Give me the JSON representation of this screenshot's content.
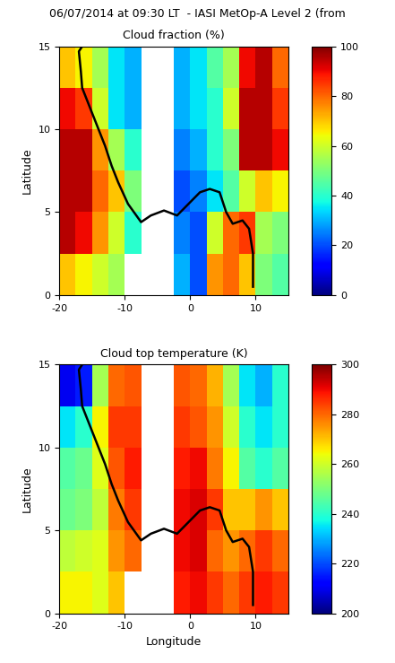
{
  "title": "06/07/2014 at 09:30 LT  - IASI MetOp-A Level 2 (from",
  "chart_data": [
    {
      "type": "heatmap",
      "title": "Cloud fraction (%)",
      "y_label": "Latitude",
      "x_edges": [
        -20,
        -17.5,
        -15,
        -12.5,
        -10,
        -7.5,
        -5,
        -2.5,
        0,
        2.5,
        5,
        7.5,
        10,
        12.5,
        15
      ],
      "y_edges": [
        0,
        2.5,
        5,
        7.5,
        10,
        12.5,
        15
      ],
      "cells": [
        [
          70,
          65,
          60,
          55,
          null,
          null,
          null,
          30,
          20,
          75,
          80,
          70,
          50,
          45
        ],
        [
          95,
          90,
          75,
          60,
          40,
          null,
          null,
          25,
          20,
          60,
          80,
          85,
          55,
          50
        ],
        [
          95,
          95,
          80,
          70,
          50,
          null,
          null,
          20,
          25,
          35,
          45,
          60,
          70,
          65
        ],
        [
          95,
          95,
          75,
          55,
          40,
          null,
          null,
          25,
          30,
          40,
          50,
          95,
          95,
          90
        ],
        [
          90,
          85,
          60,
          35,
          30,
          null,
          null,
          30,
          35,
          40,
          60,
          95,
          95,
          85
        ],
        [
          70,
          65,
          55,
          35,
          30,
          null,
          null,
          30,
          35,
          45,
          55,
          90,
          95,
          80
        ]
      ],
      "colorbar_lim": [
        0,
        100
      ],
      "colorbar_ticks": [
        0,
        20,
        40,
        60,
        80,
        100
      ],
      "xlim": [
        -20,
        15
      ],
      "ylim": [
        0,
        15
      ],
      "xticks": [
        -20,
        -10,
        0,
        10
      ],
      "yticks": [
        0,
        5,
        10,
        15
      ],
      "coastline": {
        "lon": [
          -16.5,
          -17.0,
          -16.7,
          -16.5,
          -15.5,
          -14.5,
          -13.5,
          -13.0,
          -12.0,
          -11.0,
          -9.5,
          -7.5,
          -6.0,
          -4.0,
          -2.0,
          0.0,
          1.5,
          3.0,
          4.5,
          5.5,
          6.5,
          8.0,
          9.0,
          9.6,
          9.6
        ],
        "lat": [
          15.0,
          14.7,
          13.5,
          12.5,
          11.5,
          10.5,
          9.5,
          9.0,
          7.8,
          6.8,
          5.5,
          4.4,
          4.8,
          5.1,
          4.8,
          5.6,
          6.2,
          6.4,
          6.2,
          5.0,
          4.3,
          4.5,
          4.0,
          2.5,
          0.5
        ]
      }
    },
    {
      "type": "heatmap",
      "title": "Cloud top temperature (K)",
      "x_label": "Longitude",
      "y_label": "Latitude",
      "x_edges": [
        -20,
        -17.5,
        -15,
        -12.5,
        -10,
        -7.5,
        -5,
        -2.5,
        0,
        2.5,
        5,
        7.5,
        10,
        12.5,
        15
      ],
      "y_edges": [
        0,
        2.5,
        5,
        7.5,
        10,
        12.5,
        15
      ],
      "cells": [
        [
          265,
          265,
          262,
          270,
          null,
          null,
          null,
          288,
          290,
          285,
          280,
          285,
          288,
          285
        ],
        [
          258,
          260,
          262,
          275,
          280,
          null,
          null,
          290,
          292,
          280,
          275,
          280,
          285,
          280
        ],
        [
          248,
          250,
          258,
          278,
          285,
          null,
          null,
          290,
          292,
          285,
          270,
          270,
          275,
          270
        ],
        [
          245,
          248,
          262,
          282,
          288,
          null,
          null,
          288,
          290,
          278,
          265,
          245,
          240,
          245
        ],
        [
          235,
          240,
          265,
          285,
          285,
          null,
          null,
          285,
          282,
          275,
          260,
          240,
          235,
          240
        ],
        [
          210,
          215,
          255,
          280,
          282,
          null,
          null,
          282,
          280,
          272,
          255,
          235,
          230,
          240
        ]
      ],
      "colorbar_lim": [
        200,
        300
      ],
      "colorbar_ticks": [
        200,
        220,
        240,
        260,
        280,
        300
      ],
      "xlim": [
        -20,
        15
      ],
      "ylim": [
        0,
        15
      ],
      "xticks": [
        -20,
        -10,
        0,
        10
      ],
      "yticks": [
        0,
        5,
        10,
        15
      ],
      "coastline": {
        "lon": [
          -16.5,
          -17.0,
          -16.7,
          -16.5,
          -15.5,
          -14.5,
          -13.5,
          -13.0,
          -12.0,
          -11.0,
          -9.5,
          -7.5,
          -6.0,
          -4.0,
          -2.0,
          0.0,
          1.5,
          3.0,
          4.5,
          5.5,
          6.5,
          8.0,
          9.0,
          9.6,
          9.6
        ],
        "lat": [
          15.0,
          14.7,
          13.5,
          12.5,
          11.5,
          10.5,
          9.5,
          9.0,
          7.8,
          6.8,
          5.5,
          4.4,
          4.8,
          5.1,
          4.8,
          5.6,
          6.2,
          6.4,
          6.2,
          5.0,
          4.3,
          4.5,
          4.0,
          2.5,
          0.5
        ]
      }
    }
  ]
}
